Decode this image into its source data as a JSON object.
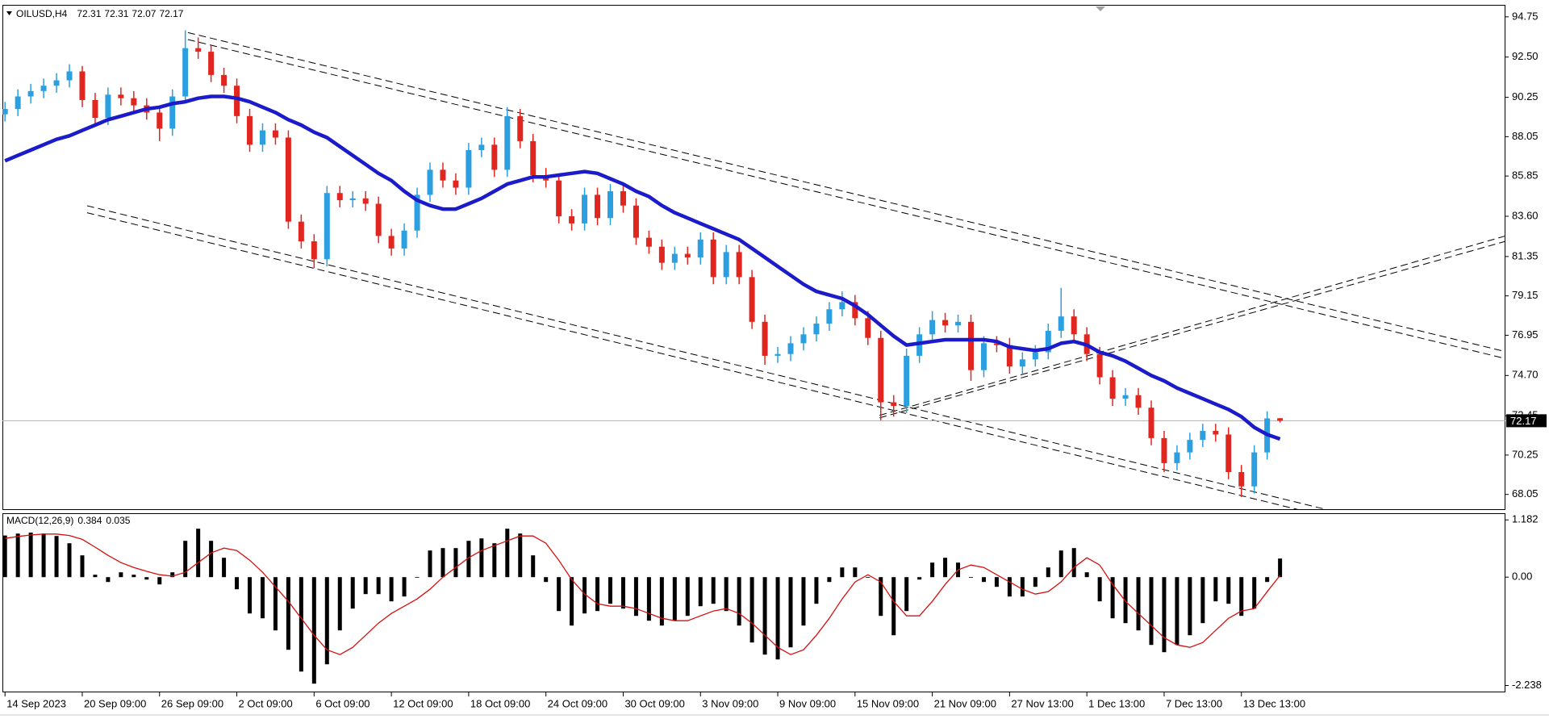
{
  "chart_data": [
    {
      "type": "candlestick",
      "title": "OILUSD,H4",
      "categories": [
        "14 Sep 2023",
        null,
        null,
        null,
        null,
        null,
        "20 Sep 09:00",
        null,
        null,
        null,
        null,
        null,
        "26 Sep 09:00",
        null,
        null,
        null,
        null,
        null,
        "2 Oct 09:00",
        null,
        null,
        null,
        null,
        null,
        "6 Oct 09:00",
        null,
        null,
        null,
        null,
        null,
        "12 Oct 09:00",
        null,
        null,
        null,
        null,
        null,
        "18 Oct 09:00",
        null,
        null,
        null,
        null,
        null,
        "24 Oct 09:00",
        null,
        null,
        null,
        null,
        null,
        "30 Oct 09:00",
        null,
        null,
        null,
        null,
        null,
        "3 Nov 09:00",
        null,
        null,
        null,
        null,
        null,
        "9 Nov 09:00",
        null,
        null,
        null,
        null,
        null,
        "15 Nov 09:00",
        null,
        null,
        null,
        null,
        null,
        "21 Nov 09:00",
        null,
        null,
        null,
        null,
        null,
        "27 Nov 13:00",
        null,
        null,
        null,
        null,
        null,
        "1 Dec 13:00",
        null,
        null,
        null,
        null,
        null,
        "7 Dec 13:00",
        null,
        null,
        null,
        null,
        null,
        "13 Dec 13:00",
        null,
        null,
        null
      ],
      "open": [
        89.3,
        89.6,
        90.3,
        90.6,
        90.9,
        91.2,
        91.7,
        90.1,
        89.1,
        90.4,
        90.2,
        89.8,
        89.4,
        88.5,
        90.3,
        93.0,
        92.8,
        91.5,
        90.9,
        89.2,
        87.6,
        88.4,
        88.0,
        83.3,
        82.2,
        81.2,
        84.9,
        84.5,
        84.6,
        84.3,
        82.5,
        81.8,
        82.8,
        84.8,
        86.2,
        85.6,
        85.2,
        87.3,
        87.6,
        86.2,
        89.2,
        87.8,
        85.9,
        85.6,
        83.6,
        83.2,
        84.8,
        83.5,
        85.0,
        84.2,
        82.4,
        81.9,
        81.0,
        81.5,
        81.3,
        82.3,
        80.2,
        81.6,
        80.2,
        77.7,
        75.8,
        75.9,
        76.5,
        77.0,
        77.6,
        78.4,
        78.8,
        77.9,
        76.8,
        73.2,
        73.0,
        75.8,
        77.0,
        77.8,
        77.5,
        77.7,
        75.0,
        76.5,
        76.4,
        75.2,
        75.6,
        76.0,
        77.2,
        78.0,
        77.0,
        75.9,
        74.6,
        73.4,
        73.6,
        72.9,
        71.2,
        69.8,
        70.4,
        71.1,
        71.6,
        71.4,
        69.3,
        68.5,
        70.4,
        72.31
      ],
      "high": [
        90.0,
        90.7,
        91.0,
        91.3,
        91.6,
        92.1,
        92.0,
        90.5,
        90.8,
        90.8,
        90.6,
        90.2,
        89.8,
        90.7,
        94.0,
        93.6,
        93.2,
        91.9,
        91.3,
        89.6,
        88.8,
        88.8,
        88.4,
        83.7,
        82.6,
        85.3,
        85.3,
        85.0,
        85.0,
        84.7,
        82.9,
        83.2,
        85.2,
        86.6,
        86.6,
        86.0,
        87.7,
        88.0,
        88.0,
        89.7,
        89.6,
        88.2,
        86.3,
        86.0,
        84.0,
        85.2,
        85.2,
        85.4,
        85.4,
        84.6,
        82.8,
        82.3,
        81.9,
        81.9,
        82.7,
        82.7,
        82.0,
        82.0,
        80.6,
        78.1,
        76.3,
        76.9,
        77.4,
        78.0,
        78.8,
        79.4,
        79.2,
        78.3,
        77.2,
        73.6,
        76.2,
        77.4,
        78.3,
        78.2,
        78.1,
        78.1,
        76.9,
        76.9,
        76.8,
        76.0,
        76.4,
        77.6,
        79.6,
        78.4,
        77.4,
        76.3,
        75.0,
        74.0,
        74.0,
        73.3,
        71.6,
        70.8,
        71.5,
        72.0,
        72.0,
        71.8,
        69.7,
        70.8,
        72.7,
        72.31
      ],
      "low": [
        88.9,
        89.2,
        89.9,
        90.2,
        90.5,
        90.8,
        89.7,
        88.7,
        88.7,
        89.8,
        89.4,
        89.0,
        87.8,
        88.1,
        89.9,
        92.4,
        91.1,
        90.5,
        88.8,
        87.2,
        87.2,
        87.6,
        82.9,
        81.8,
        80.7,
        80.8,
        84.1,
        84.1,
        83.9,
        82.1,
        81.4,
        81.4,
        82.4,
        84.4,
        85.2,
        84.8,
        84.8,
        86.9,
        85.8,
        85.8,
        87.4,
        85.5,
        85.2,
        83.2,
        82.8,
        82.8,
        83.1,
        83.1,
        83.8,
        82.0,
        81.5,
        80.6,
        80.6,
        80.9,
        80.9,
        79.8,
        79.8,
        79.8,
        77.3,
        75.3,
        75.4,
        75.5,
        76.1,
        76.6,
        77.2,
        78.0,
        77.5,
        76.4,
        72.2,
        72.4,
        72.6,
        75.4,
        76.6,
        77.1,
        77.1,
        74.4,
        74.6,
        76.0,
        74.8,
        74.8,
        75.2,
        75.6,
        76.8,
        76.6,
        75.5,
        74.2,
        73.0,
        73.0,
        72.5,
        70.8,
        69.3,
        69.4,
        70.0,
        70.7,
        71.0,
        68.9,
        67.9,
        68.1,
        70.0,
        72.07
      ],
      "close": [
        89.6,
        90.3,
        90.6,
        90.9,
        91.2,
        91.7,
        90.1,
        89.1,
        90.4,
        90.2,
        89.8,
        89.4,
        88.5,
        90.3,
        93.0,
        92.8,
        91.5,
        90.9,
        89.2,
        87.6,
        88.4,
        88.0,
        83.3,
        82.2,
        81.2,
        84.9,
        84.5,
        84.6,
        84.3,
        82.5,
        81.8,
        82.8,
        84.8,
        86.2,
        85.6,
        85.2,
        87.3,
        87.6,
        86.2,
        89.2,
        87.8,
        85.9,
        85.6,
        83.6,
        83.2,
        84.8,
        83.5,
        85.0,
        84.2,
        82.4,
        81.9,
        81.0,
        81.5,
        81.3,
        82.3,
        80.2,
        81.6,
        80.2,
        77.7,
        75.8,
        75.9,
        76.5,
        77.0,
        77.6,
        78.4,
        78.8,
        77.9,
        76.8,
        73.2,
        73.0,
        75.8,
        77.0,
        77.8,
        77.5,
        77.7,
        75.0,
        76.5,
        76.4,
        75.2,
        75.6,
        76.0,
        77.2,
        78.0,
        77.0,
        75.9,
        74.6,
        73.4,
        73.6,
        72.9,
        71.2,
        69.8,
        70.4,
        71.1,
        71.6,
        71.4,
        69.3,
        68.5,
        70.4,
        72.3,
        72.17
      ],
      "up_color": "#2b9fe0",
      "down_color": "#e0261f",
      "overlay": {
        "color": "#1b1bc9",
        "values": [
          86.7,
          87.0,
          87.3,
          87.6,
          87.9,
          88.1,
          88.4,
          88.7,
          89.0,
          89.2,
          89.4,
          89.6,
          89.7,
          89.9,
          90.0,
          90.2,
          90.3,
          90.3,
          90.2,
          90.0,
          89.7,
          89.4,
          89.0,
          88.7,
          88.3,
          88.0,
          87.5,
          87.0,
          86.5,
          86.0,
          85.6,
          85.0,
          84.5,
          84.2,
          84.0,
          84.0,
          84.3,
          84.6,
          85.0,
          85.4,
          85.6,
          85.8,
          85.8,
          85.9,
          86.0,
          86.1,
          86.0,
          85.7,
          85.4,
          85.0,
          84.7,
          84.2,
          83.8,
          83.5,
          83.2,
          82.9,
          82.6,
          82.3,
          81.8,
          81.3,
          80.8,
          80.3,
          79.8,
          79.4,
          79.2,
          79.0,
          78.6,
          78.1,
          77.5,
          76.9,
          76.4,
          76.5,
          76.6,
          76.7,
          76.7,
          76.7,
          76.7,
          76.6,
          76.3,
          76.2,
          76.1,
          76.2,
          76.5,
          76.6,
          76.4,
          76.0,
          75.8,
          75.5,
          75.1,
          74.7,
          74.4,
          74.0,
          73.7,
          73.4,
          73.1,
          72.8,
          72.4,
          71.8,
          71.4,
          71.15
        ]
      },
      "trendlines": [
        {
          "points": [
            [
              14.2,
              93.87
            ],
            [
              116.3,
              76.07
            ]
          ]
        },
        {
          "points": [
            [
              14.2,
              93.48
            ],
            [
              116.3,
              75.68
            ]
          ]
        },
        {
          "points": [
            [
              6.37,
              84.19
            ],
            [
              102.8,
              67.17
            ]
          ]
        },
        {
          "points": [
            [
              6.37,
              83.8
            ],
            [
              102.8,
              66.78
            ]
          ]
        },
        {
          "points": [
            [
              67.9,
              72.47
            ],
            [
              116.5,
              82.5
            ]
          ]
        },
        {
          "points": [
            [
              67.9,
              72.33
            ],
            [
              116.5,
              82.2
            ]
          ]
        }
      ],
      "xlim": [
        -0.2,
        116.5
      ],
      "ylim": [
        67.18,
        95.42
      ],
      "yticks": [
        94.75,
        {
          "value": 92.5,
          "label": "92.50"
        },
        90.25,
        88.05,
        85.85,
        {
          "value": 83.6,
          "label": "83.60"
        },
        81.35,
        79.15,
        76.95,
        {
          "value": 74.7,
          "label": "74.70"
        },
        72.45,
        70.25,
        68.05
      ]
    },
    {
      "type": "macd",
      "title": "MACD(12,26,9)",
      "color": "#000000",
      "values": [
        0.86,
        0.9,
        0.92,
        0.9,
        0.85,
        0.7,
        0.45,
        0.05,
        -0.1,
        0.1,
        0.05,
        -0.05,
        -0.15,
        0.1,
        0.75,
        1.0,
        0.75,
        0.4,
        -0.25,
        -0.75,
        -0.85,
        -1.1,
        -1.5,
        -1.95,
        -2.2,
        -1.8,
        -1.1,
        -0.65,
        -0.35,
        -0.35,
        -0.5,
        -0.4,
        0.0,
        0.55,
        0.6,
        0.6,
        0.75,
        0.8,
        0.7,
        1.0,
        0.9,
        0.45,
        -0.1,
        -0.7,
        -1.0,
        -0.75,
        -0.7,
        -0.55,
        -0.65,
        -0.8,
        -0.9,
        -1.0,
        -0.9,
        -0.8,
        -0.6,
        -0.55,
        -0.7,
        -1.0,
        -1.35,
        -1.6,
        -1.7,
        -1.45,
        -1.0,
        -0.55,
        -0.1,
        0.2,
        0.2,
        0.0,
        -0.8,
        -1.2,
        -0.7,
        -0.05,
        0.3,
        0.4,
        0.3,
        0.0,
        -0.1,
        -0.2,
        -0.4,
        -0.4,
        -0.2,
        0.2,
        0.55,
        0.6,
        0.1,
        -0.5,
        -0.85,
        -0.95,
        -1.1,
        -1.4,
        -1.55,
        -1.4,
        -1.2,
        -0.95,
        -0.5,
        -0.55,
        -0.8,
        -0.65,
        -0.1,
        0.384
      ],
      "signal": {
        "color": "#d41010",
        "values": [
          0.8,
          0.84,
          0.87,
          0.89,
          0.89,
          0.86,
          0.78,
          0.62,
          0.45,
          0.3,
          0.2,
          0.12,
          0.05,
          0.02,
          0.1,
          0.3,
          0.5,
          0.6,
          0.55,
          0.35,
          0.1,
          -0.2,
          -0.5,
          -0.85,
          -1.2,
          -1.5,
          -1.6,
          -1.45,
          -1.2,
          -0.95,
          -0.75,
          -0.6,
          -0.45,
          -0.25,
          0.0,
          0.2,
          0.4,
          0.55,
          0.65,
          0.75,
          0.85,
          0.85,
          0.7,
          0.35,
          -0.05,
          -0.35,
          -0.55,
          -0.6,
          -0.6,
          -0.65,
          -0.75,
          -0.85,
          -0.9,
          -0.9,
          -0.8,
          -0.7,
          -0.65,
          -0.75,
          -0.95,
          -1.2,
          -1.45,
          -1.6,
          -1.5,
          -1.2,
          -0.85,
          -0.45,
          -0.1,
          0.05,
          -0.1,
          -0.5,
          -0.8,
          -0.8,
          -0.5,
          -0.15,
          0.15,
          0.25,
          0.2,
          0.05,
          -0.1,
          -0.25,
          -0.35,
          -0.3,
          -0.1,
          0.2,
          0.4,
          0.25,
          -0.15,
          -0.5,
          -0.75,
          -1.0,
          -1.25,
          -1.4,
          -1.45,
          -1.35,
          -1.1,
          -0.85,
          -0.7,
          -0.65,
          -0.3,
          0.035
        ]
      },
      "xlim": [
        -0.2,
        116.5
      ],
      "ylim": [
        -2.38,
        1.32
      ],
      "yticks": [
        1.182,
        {
          "value": 0,
          "label": "0.00"
        },
        -2.238
      ]
    }
  ]
}
